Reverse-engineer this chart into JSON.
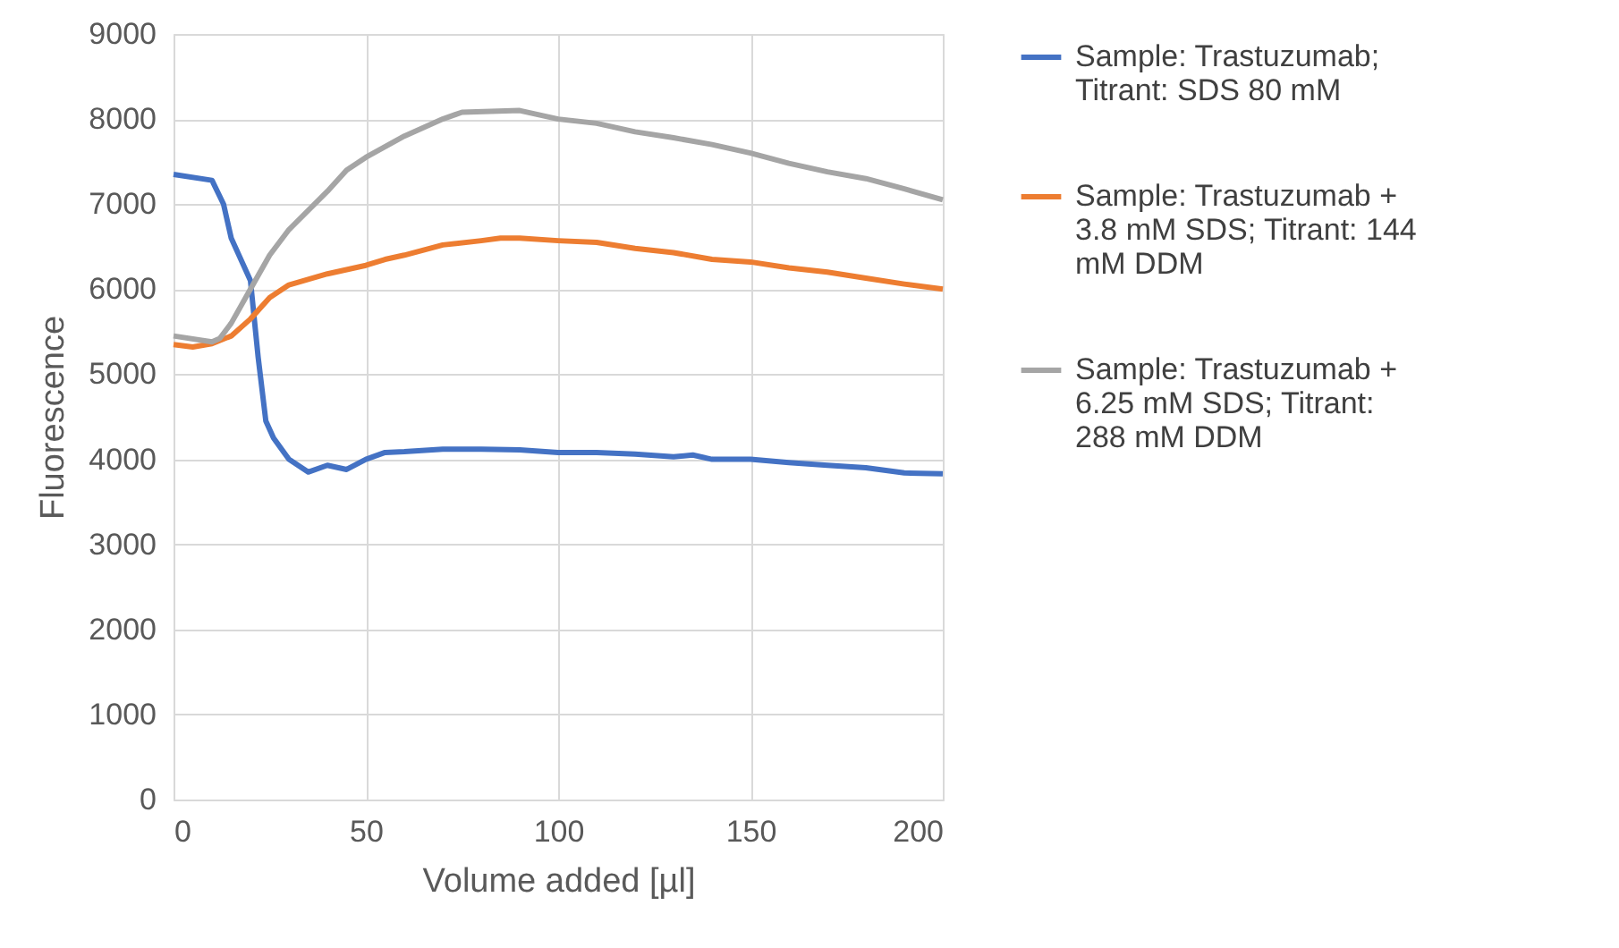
{
  "chart_data": {
    "type": "line",
    "xlabel": "Volume added [µl]",
    "ylabel": "Fluorescence",
    "xlim": [
      0,
      200
    ],
    "xticks": [
      0,
      50,
      100,
      150,
      200
    ],
    "ylim": [
      0,
      9000
    ],
    "yticks": [
      0,
      1000,
      2000,
      3000,
      4000,
      5000,
      6000,
      7000,
      8000,
      9000
    ],
    "grid": true,
    "legend": "right",
    "marker": "none",
    "line_style": "solid",
    "series": [
      {
        "name": "Sample: Trastuzumab; Titrant: SDS 80 mM",
        "color": "#4472c4",
        "x": [
          0,
          10,
          13,
          15,
          18,
          20,
          22,
          24,
          26,
          30,
          35,
          40,
          45,
          50,
          55,
          60,
          70,
          80,
          90,
          100,
          110,
          120,
          130,
          135,
          140,
          150,
          160,
          170,
          180,
          190,
          200
        ],
        "values": [
          7350,
          7280,
          7000,
          6600,
          6300,
          6100,
          5200,
          4450,
          4250,
          4000,
          3850,
          3930,
          3880,
          4000,
          4080,
          4090,
          4120,
          4120,
          4110,
          4080,
          4080,
          4060,
          4030,
          4050,
          4000,
          4000,
          3960,
          3930,
          3900,
          3840,
          3830
        ]
      },
      {
        "name": "Sample: Trastuzumab + 3.8 mM SDS; Titrant: 144 mM DDM",
        "color": "#ed7d31",
        "x": [
          0,
          5,
          10,
          15,
          20,
          25,
          30,
          40,
          50,
          55,
          60,
          70,
          80,
          85,
          90,
          100,
          110,
          120,
          130,
          140,
          150,
          160,
          170,
          180,
          190,
          200
        ],
        "values": [
          5350,
          5320,
          5360,
          5450,
          5650,
          5900,
          6050,
          6180,
          6280,
          6350,
          6400,
          6520,
          6570,
          6600,
          6600,
          6570,
          6550,
          6480,
          6430,
          6350,
          6320,
          6250,
          6200,
          6130,
          6060,
          6000
        ]
      },
      {
        "name": "Sample: Trastuzumab + 6.25 mM SDS; Titrant: 288 mM DDM",
        "color": "#a5a5a5",
        "x": [
          0,
          10,
          12,
          15,
          20,
          25,
          30,
          40,
          45,
          50,
          60,
          70,
          75,
          90,
          100,
          110,
          120,
          130,
          140,
          150,
          160,
          170,
          180,
          190,
          200
        ],
        "values": [
          5450,
          5380,
          5420,
          5600,
          6000,
          6400,
          6700,
          7150,
          7400,
          7550,
          7800,
          8000,
          8080,
          8100,
          8000,
          7950,
          7850,
          7780,
          7700,
          7600,
          7480,
          7380,
          7300,
          7180,
          7050
        ]
      }
    ]
  }
}
